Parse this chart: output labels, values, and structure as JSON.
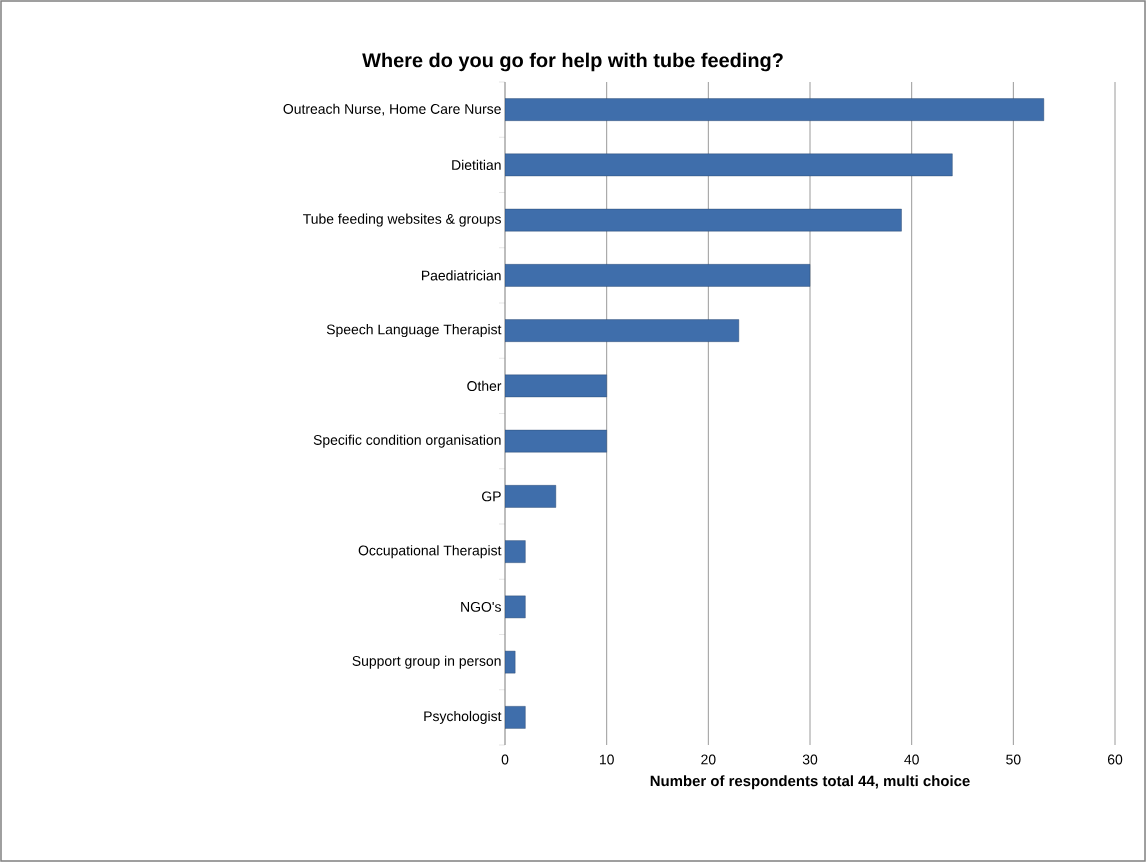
{
  "chart_data": {
    "type": "bar",
    "orientation": "horizontal",
    "title": "Where do you go for help with tube feeding?",
    "xlabel": "Number of respondents total 44, multi choice",
    "categories": [
      "Outreach Nurse, Home Care Nurse",
      "Dietitian",
      "Tube feeding websites & groups",
      "Paediatrician",
      "Speech Language Therapist",
      "Other",
      "Specific condition organisation",
      "GP",
      "Occupational Therapist",
      "NGO's",
      "Support group in person",
      "Psychologist"
    ],
    "values": [
      53,
      44,
      39,
      30,
      23,
      10,
      10,
      5,
      2,
      2,
      1,
      2
    ],
    "color": "#3f6eab",
    "xlim": [
      0,
      60
    ],
    "xticks": [
      0,
      10,
      20,
      30,
      40,
      50,
      60
    ],
    "grid": "x"
  }
}
